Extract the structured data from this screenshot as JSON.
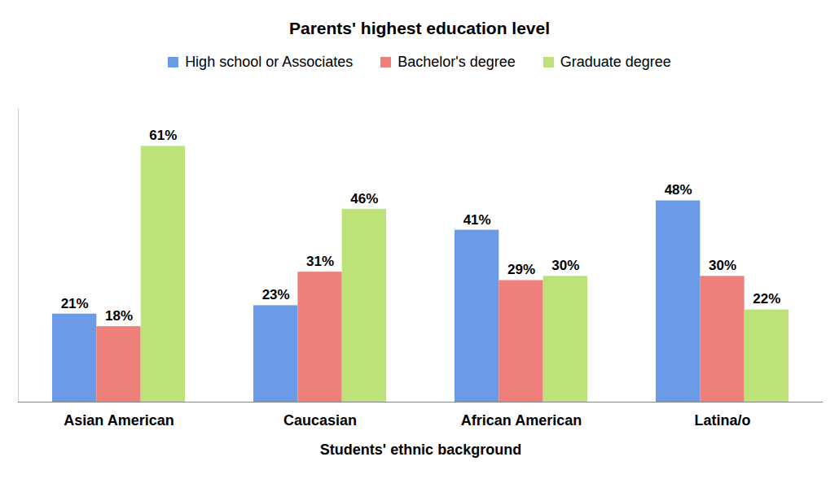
{
  "chart_data": {
    "type": "bar",
    "title": "Parents' highest education level",
    "x_label": "Students' ethnic background",
    "categories": [
      "Asian American",
      "Caucasian",
      "African American",
      "Latina/o"
    ],
    "series": [
      {
        "name": "High school or Associates",
        "color": "#6b9ae6",
        "values": [
          21,
          23,
          41,
          48
        ],
        "value_labels": [
          "21%",
          "23%",
          "41%",
          "48%"
        ]
      },
      {
        "name": "Bachelor's degree",
        "color": "#ee7f7b",
        "values": [
          18,
          31,
          29,
          30
        ],
        "value_labels": [
          "18%",
          "31%",
          "29%",
          "30%"
        ]
      },
      {
        "name": "Graduate degree",
        "color": "#bde27a",
        "values": [
          61,
          46,
          30,
          22
        ],
        "value_labels": [
          "61%",
          "46%",
          "30%",
          "22%"
        ]
      }
    ],
    "ylim": [
      0,
      70
    ],
    "grid": false,
    "legend": "top",
    "data_labels": true,
    "tick_labels": "x"
  }
}
